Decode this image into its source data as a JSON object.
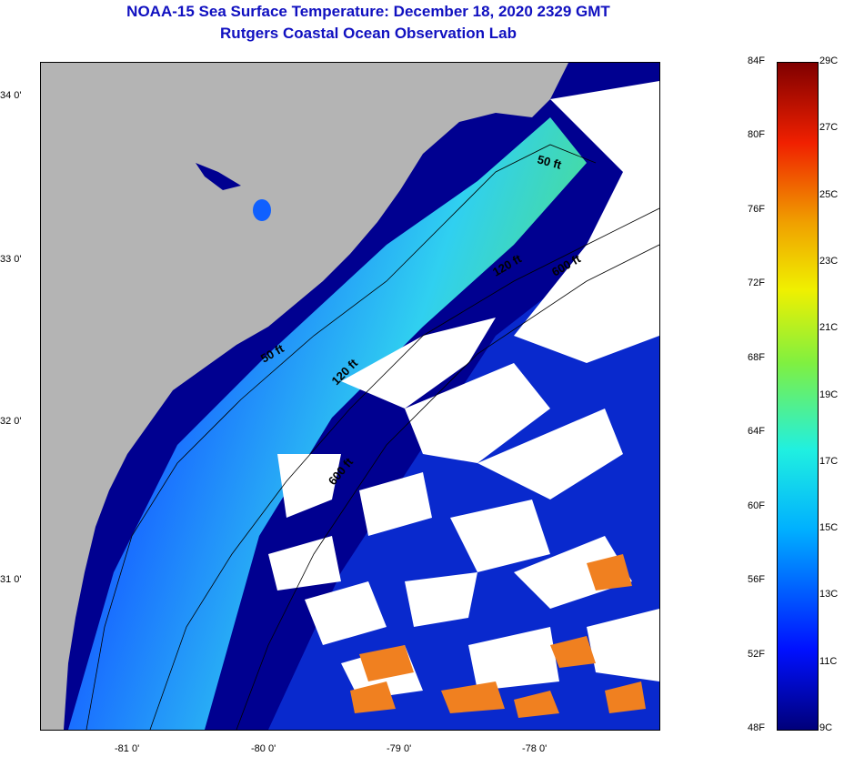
{
  "header": {
    "title": "NOAA-15 Sea Surface Temperature:  December 18, 2020 2329 GMT",
    "subtitle": "Rutgers Coastal Ocean Observation Lab"
  },
  "map": {
    "lat_labels": [
      "34 0'",
      "33 0'",
      "32 0'",
      "31 0'"
    ],
    "lon_labels": [
      "-81 0'",
      "-80 0'",
      "-79 0'",
      "-78 0'"
    ],
    "contour_labels": [
      "50 ft",
      "50 ft",
      "120 ft",
      "120 ft",
      "600 ft",
      "600 ft"
    ],
    "colors": {
      "land": "#b4b4b4",
      "cloud": "#ffffff",
      "cold": "#000090",
      "cool": "#1060ff",
      "mid": "#20d0f0",
      "warm": "#f08020"
    }
  },
  "colorbar": {
    "fahrenheit_labels": [
      "84F",
      "80F",
      "76F",
      "72F",
      "68F",
      "64F",
      "60F",
      "56F",
      "52F",
      "48F"
    ],
    "celsius_labels": [
      "29C",
      "27C",
      "25C",
      "23C",
      "21C",
      "19C",
      "17C",
      "15C",
      "13C",
      "11C",
      "9C"
    ],
    "range_f": [
      48,
      84
    ],
    "range_c": [
      9,
      29
    ]
  }
}
